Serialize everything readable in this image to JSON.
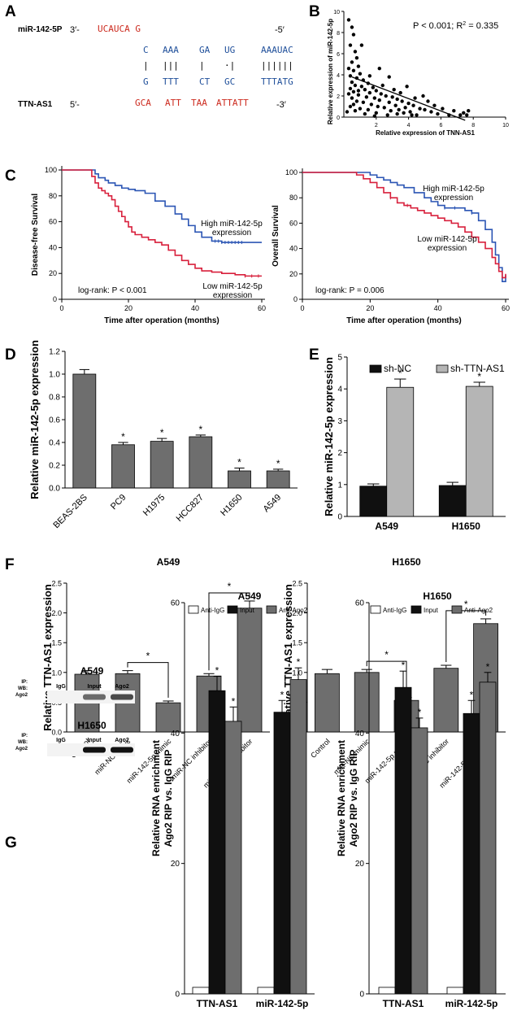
{
  "panels": [
    "A",
    "B",
    "C",
    "D",
    "E",
    "F",
    "G"
  ],
  "colors": {
    "red": "#d8203c",
    "blue": "#2b55b4",
    "seqRed": "#cc2a1e",
    "seqBlue": "#1f4f9a",
    "gray": "#6e6e6e",
    "lightgray": "#b5b5b5",
    "black": "#101010"
  },
  "panel_a": {
    "mir_label": "miR-142-5P",
    "mir_prefix": "3′-",
    "mir_suffix": "-5′",
    "tt_label": "TTN-AS1",
    "tt_prefix": "5′-",
    "tt_suffix": "-3′",
    "rows": {
      "top_red": "UCAUCA G",
      "blue_top": [
        "C",
        "AAA",
        "GA",
        "UG",
        "AAAUAC"
      ],
      "pairs": [
        "|",
        "|||",
        "|",
        "·|",
        "||||||"
      ],
      "blue_bot": [
        "G",
        "TTT",
        "CT",
        "GC",
        "TTTATG"
      ],
      "bot_red": [
        "GCA",
        "ATT",
        "TAA",
        "ATTATT"
      ]
    }
  },
  "chart_data": [
    {
      "id": "B",
      "type": "scatter",
      "annotation": "P < 0.001; R",
      "annotation_sup": "2",
      "annotation_value": " = 0.335",
      "xlabel": "Relative expression of TNN-AS1",
      "ylabel": "Relative expression of miR-142-5p",
      "xlim": [
        0,
        10
      ],
      "ylim": [
        0,
        10
      ],
      "xticks": [
        "2",
        "4",
        "6",
        "8",
        "10"
      ],
      "yticks": [
        "0",
        "2",
        "4",
        "6",
        "8",
        "10"
      ],
      "fit_line": {
        "x": [
          0.5,
          7.5
        ],
        "y": [
          3.8,
          -0.3
        ]
      },
      "points": [
        [
          0.3,
          9.2
        ],
        [
          0.5,
          8.5
        ],
        [
          0.6,
          7.8
        ],
        [
          0.4,
          6.8
        ],
        [
          0.7,
          6.2
        ],
        [
          0.8,
          5.6
        ],
        [
          0.5,
          5.2
        ],
        [
          0.9,
          4.8
        ],
        [
          0.3,
          4.6
        ],
        [
          0.6,
          4.4
        ],
        [
          1.0,
          4.1
        ],
        [
          0.4,
          3.9
        ],
        [
          0.8,
          3.7
        ],
        [
          1.2,
          3.5
        ],
        [
          0.5,
          3.3
        ],
        [
          1.5,
          3.2
        ],
        [
          0.7,
          3.0
        ],
        [
          1.1,
          2.9
        ],
        [
          1.8,
          2.8
        ],
        [
          0.4,
          2.7
        ],
        [
          1.3,
          2.6
        ],
        [
          2.0,
          2.5
        ],
        [
          0.6,
          2.4
        ],
        [
          1.6,
          2.3
        ],
        [
          2.3,
          2.2
        ],
        [
          0.9,
          2.1
        ],
        [
          2.6,
          2.0
        ],
        [
          1.4,
          1.9
        ],
        [
          3.0,
          1.9
        ],
        [
          0.5,
          1.8
        ],
        [
          1.9,
          1.8
        ],
        [
          3.3,
          1.7
        ],
        [
          2.2,
          1.6
        ],
        [
          0.8,
          1.5
        ],
        [
          3.6,
          1.5
        ],
        [
          1.2,
          1.4
        ],
        [
          2.8,
          1.4
        ],
        [
          4.0,
          1.3
        ],
        [
          0.6,
          1.2
        ],
        [
          1.7,
          1.2
        ],
        [
          3.2,
          1.1
        ],
        [
          4.3,
          1.1
        ],
        [
          2.1,
          1.0
        ],
        [
          0.4,
          1.0
        ],
        [
          3.8,
          0.9
        ],
        [
          2.5,
          0.9
        ],
        [
          1.0,
          0.8
        ],
        [
          4.7,
          0.8
        ],
        [
          3.4,
          0.7
        ],
        [
          1.5,
          0.7
        ],
        [
          5.0,
          0.7
        ],
        [
          2.9,
          0.6
        ],
        [
          0.7,
          0.6
        ],
        [
          4.1,
          0.5
        ],
        [
          5.4,
          0.5
        ],
        [
          2.0,
          0.4
        ],
        [
          3.7,
          0.4
        ],
        [
          1.3,
          0.3
        ],
        [
          5.8,
          0.3
        ],
        [
          4.5,
          0.2
        ],
        [
          2.7,
          0.2
        ],
        [
          6.5,
          0.2
        ],
        [
          7.2,
          0.2
        ],
        [
          7.6,
          0.2
        ],
        [
          7.4,
          0.4
        ],
        [
          5.2,
          1.5
        ],
        [
          4.9,
          2.0
        ],
        [
          3.1,
          2.6
        ],
        [
          2.4,
          3.0
        ],
        [
          3.5,
          2.3
        ],
        [
          4.4,
          1.8
        ],
        [
          5.6,
          1.1
        ],
        [
          6.1,
          0.8
        ],
        [
          1.1,
          6.8
        ],
        [
          0.9,
          2.5
        ],
        [
          1.6,
          3.9
        ],
        [
          2.2,
          4.6
        ],
        [
          3.9,
          2.9
        ],
        [
          4.2,
          0.2
        ],
        [
          6.8,
          0.6
        ],
        [
          7.7,
          0.6
        ],
        [
          1.9,
          0.1
        ],
        [
          0.2,
          0.5
        ],
        [
          0.3,
          2.2
        ],
        [
          2.8,
          3.8
        ],
        [
          3.3,
          0.3
        ]
      ]
    },
    {
      "id": "C1",
      "type": "line",
      "kind": "km",
      "ylabel": "Disease-free Survival",
      "xlabel": "Time after operation (months)",
      "xlim": [
        0,
        60
      ],
      "ylim": [
        0,
        100
      ],
      "xticks": [
        "0",
        "20",
        "40",
        "60"
      ],
      "yticks": [
        "0",
        "20",
        "40",
        "60",
        "80",
        "100"
      ],
      "stat": "log-rank: P < 0.001",
      "series": [
        {
          "name": "High miR-142-5p expression",
          "line1": "High miR-142-5p",
          "line2": "expression",
          "color": "blue",
          "x": [
            0,
            8,
            10,
            11,
            13,
            14,
            16,
            18,
            20,
            22,
            25,
            28,
            31,
            34,
            36,
            38,
            40,
            42,
            45,
            48,
            50,
            52,
            54,
            56,
            58,
            60
          ],
          "y": [
            100,
            100,
            97,
            94,
            92,
            90,
            88,
            86,
            85,
            84,
            82,
            76,
            72,
            66,
            62,
            57,
            52,
            48,
            45,
            44,
            44,
            44,
            44,
            44,
            44,
            44
          ],
          "cens": [
            46,
            47,
            48,
            49,
            50,
            51,
            52,
            53,
            54
          ]
        },
        {
          "name": "Low miR-142-5p expression",
          "line1": "Low miR-142-5p",
          "line2": "expression",
          "color": "red",
          "x": [
            0,
            8,
            9,
            10,
            11,
            12,
            13,
            14,
            15,
            16,
            17,
            18,
            19,
            20,
            21,
            22,
            24,
            26,
            28,
            30,
            32,
            34,
            36,
            38,
            40,
            42,
            45,
            48,
            52,
            55,
            58,
            60
          ],
          "y": [
            100,
            100,
            95,
            90,
            86,
            84,
            82,
            80,
            77,
            72,
            68,
            64,
            60,
            56,
            52,
            50,
            48,
            46,
            44,
            42,
            38,
            34,
            30,
            27,
            24,
            22,
            21,
            20,
            19,
            18,
            18,
            18
          ],
          "cens": [
            55,
            57,
            59
          ]
        }
      ]
    },
    {
      "id": "C2",
      "type": "line",
      "kind": "km",
      "ylabel": "Overall Survival",
      "xlabel": "Time after operation (months)",
      "xlim": [
        0,
        60
      ],
      "ylim": [
        0,
        100
      ],
      "xticks": [
        "0",
        "20",
        "40",
        "60"
      ],
      "yticks": [
        "0",
        "20",
        "40",
        "60",
        "80",
        "100"
      ],
      "stat": "log-rank: P = 0.006",
      "series": [
        {
          "name": "High miR-142-5p expression",
          "line1": "High miR-142-5p",
          "line2": "expression",
          "color": "blue",
          "x": [
            0,
            10,
            15,
            20,
            22,
            24,
            26,
            28,
            30,
            33,
            36,
            38,
            40,
            42,
            44,
            46,
            48,
            50,
            52,
            54,
            56,
            57,
            58,
            59,
            60
          ],
          "y": [
            100,
            100,
            100,
            98,
            96,
            94,
            92,
            90,
            88,
            84,
            80,
            77,
            74,
            72,
            72,
            72,
            70,
            68,
            62,
            55,
            45,
            35,
            25,
            14,
            19
          ],
          "cens": [
            42,
            45,
            50
          ]
        },
        {
          "name": "Low miR-142-5p expression",
          "line1": "Low miR-142-5p",
          "line2": "expression",
          "color": "red",
          "x": [
            0,
            13,
            16,
            18,
            20,
            22,
            24,
            26,
            28,
            30,
            32,
            34,
            36,
            38,
            40,
            42,
            44,
            46,
            48,
            50,
            52,
            54,
            56,
            57,
            58,
            59,
            60
          ],
          "y": [
            100,
            100,
            98,
            95,
            92,
            88,
            84,
            80,
            76,
            74,
            72,
            70,
            68,
            66,
            64,
            62,
            60,
            57,
            53,
            49,
            45,
            40,
            33,
            28,
            22,
            17,
            20
          ],
          "cens": [
            26,
            31
          ]
        }
      ]
    },
    {
      "id": "D",
      "type": "bar",
      "ylabel": "Relative miR-142-5p expression",
      "categories": [
        "BEAS-2BS",
        "PC9",
        "H1975",
        "HCC827",
        "H1650",
        "A549"
      ],
      "values": [
        1.0,
        0.38,
        0.41,
        0.45,
        0.15,
        0.15
      ],
      "errors": [
        0.04,
        0.02,
        0.025,
        0.015,
        0.025,
        0.015
      ],
      "stars": [
        "",
        "*",
        "*",
        "*",
        "*",
        "*"
      ],
      "ylim": [
        0,
        1.2
      ],
      "yticks": [
        "0.0",
        "0.2",
        "0.4",
        "0.6",
        "0.8",
        "1.0",
        "1.2"
      ]
    },
    {
      "id": "E",
      "type": "bar",
      "ylabel": "Relative miR-142-5p expression",
      "categories": [
        "A549",
        "H1650"
      ],
      "series": [
        {
          "name": "sh-NC",
          "color": "black",
          "values": [
            0.95,
            0.97
          ],
          "errors": [
            0.07,
            0.1
          ],
          "stars": [
            "",
            ""
          ]
        },
        {
          "name": "sh-TTN-AS1",
          "color": "lightgray",
          "values": [
            4.05,
            4.08
          ],
          "errors": [
            0.26,
            0.13
          ],
          "stars": [
            "*",
            "*"
          ]
        }
      ],
      "ylim": [
        0,
        5
      ],
      "yticks": [
        "0",
        "1",
        "2",
        "3",
        "4",
        "5"
      ]
    },
    {
      "id": "F1",
      "type": "bar",
      "title": "A549",
      "ylabel": "Relative TTN-AS1 expression",
      "categories": [
        "Control",
        "miR-NC mimic",
        "miR-142-5p mimic",
        "miR-NC inhibitor",
        "miR-142-5p inhibitor"
      ],
      "values": [
        0.97,
        0.98,
        0.49,
        0.94,
        2.08
      ],
      "errors": [
        0.06,
        0.05,
        0.03,
        0.04,
        0.12
      ],
      "brackets": [
        [
          1,
          2,
          "*"
        ],
        [
          3,
          4,
          "*"
        ]
      ],
      "ylim": [
        0,
        2.5
      ],
      "yticks": [
        "0.0",
        "0.5",
        "1.0",
        "1.5",
        "2.0",
        "2.5"
      ]
    },
    {
      "id": "F2",
      "type": "bar",
      "title": "H1650",
      "ylabel": "Relative TTN-AS1 expression",
      "categories": [
        "Control",
        "miR-NC mimic",
        "miR-142-5p mimic",
        "miR-NC inhibitor",
        "miR-142-5p inhibitor"
      ],
      "values": [
        0.98,
        1.0,
        0.53,
        1.07,
        1.82
      ],
      "errors": [
        0.07,
        0.05,
        0.05,
        0.05,
        0.08
      ],
      "brackets": [
        [
          1,
          2,
          "*"
        ],
        [
          3,
          4,
          "*"
        ]
      ],
      "ylim": [
        0,
        2.5
      ],
      "yticks": [
        "0.0",
        "0.5",
        "1.0",
        "1.5",
        "2.0",
        "2.5"
      ]
    },
    {
      "id": "G1",
      "type": "bar",
      "title": "A549",
      "ylabel": "Relative RNA enrichment",
      "ylabel2": "Ago2 RIP vs. IgG RIP",
      "categories": [
        "TTN-AS1",
        "miR-142-5p"
      ],
      "series": [
        {
          "name": "Anti-IgG",
          "color": "white",
          "values": [
            1,
            1
          ],
          "errors": [
            0,
            0
          ],
          "stars": [
            "",
            ""
          ]
        },
        {
          "name": "Input",
          "color": "black",
          "values": [
            46.5,
            43.2
          ],
          "errors": [
            2.2,
            1.8
          ],
          "stars": [
            "*",
            "*"
          ]
        },
        {
          "name": "Anti-Ago2",
          "color": "gray",
          "values": [
            41.8,
            48.2
          ],
          "errors": [
            2.2,
            1.8
          ],
          "stars": [
            "*",
            "*"
          ]
        }
      ],
      "ylim": [
        0,
        60
      ],
      "yticks": [
        "0",
        "20",
        "40",
        "60"
      ]
    },
    {
      "id": "G2",
      "type": "bar",
      "title": "H1650",
      "ylabel": "Relative RNA enrichment",
      "ylabel2": "Ago2 RIP vs. IgG RIP",
      "categories": [
        "TTN-AS1",
        "miR-142-5p"
      ],
      "series": [
        {
          "name": "Anti-IgG",
          "color": "white",
          "values": [
            1,
            1
          ],
          "errors": [
            0,
            0
          ],
          "stars": [
            "",
            ""
          ]
        },
        {
          "name": "Input",
          "color": "black",
          "values": [
            47.0,
            43.0
          ],
          "errors": [
            2.5,
            2.0
          ],
          "stars": [
            "*",
            "*"
          ]
        },
        {
          "name": "Anti-Ago2",
          "color": "gray",
          "values": [
            40.8,
            47.8
          ],
          "errors": [
            1.5,
            1.5
          ],
          "stars": [
            "*",
            "*"
          ]
        }
      ],
      "ylim": [
        0,
        60
      ],
      "yticks": [
        "0",
        "20",
        "40",
        "60"
      ]
    }
  ],
  "western_blot": {
    "blocks": [
      {
        "title": "A549",
        "lanes": [
          "IgG",
          "Input",
          "Ago2"
        ],
        "row_labels": [
          "IP:",
          "WB:",
          "Ago2"
        ],
        "intensity": [
          0.0,
          0.6,
          0.75
        ]
      },
      {
        "title": "H1650",
        "lanes": [
          "IgG",
          "Input",
          "Ago2"
        ],
        "row_labels": [
          "IP:",
          "WB:",
          "Ago2"
        ],
        "intensity": [
          0.0,
          1.0,
          1.0
        ]
      }
    ]
  }
}
